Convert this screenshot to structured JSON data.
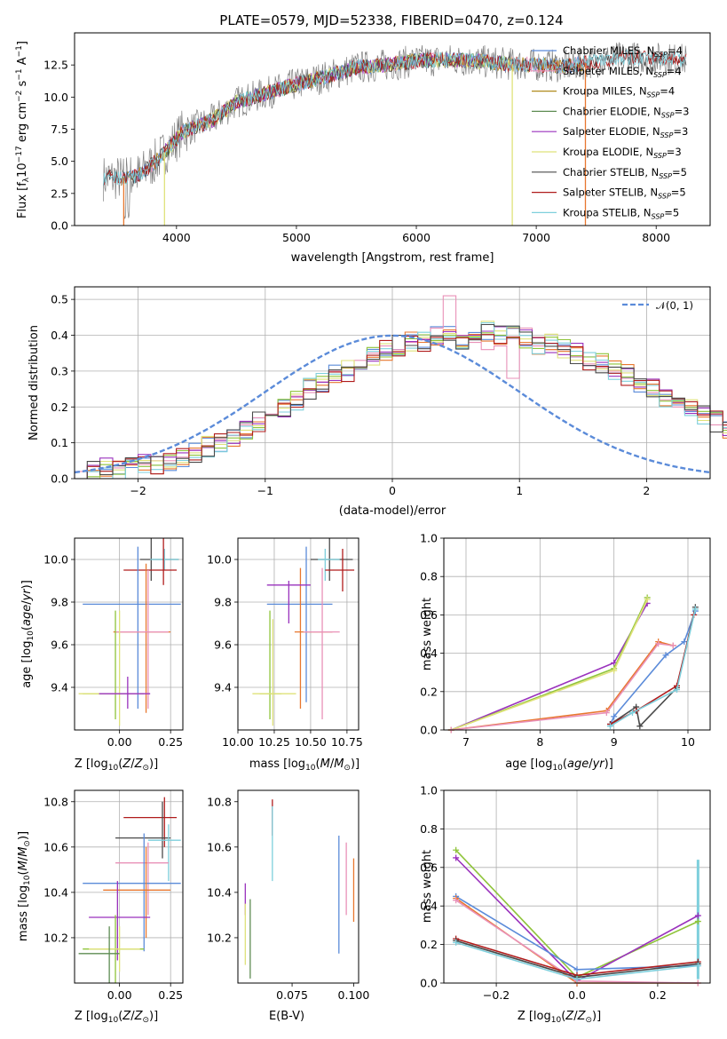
{
  "palette": {
    "Chabrier MILES": "#5b8bd9",
    "Salpeter MILES": "#e991b8",
    "Kroupa MILES": "#b08a1c",
    "Chabrier ELODIE": "#5e8c52",
    "Salpeter ELODIE": "#9a32bd",
    "Kroupa ELODIE": "#dfe27a",
    "Chabrier STELIB": "#4a4a4a",
    "Salpeter STELIB": "#b01c1c",
    "Kroupa STELIB": "#7ecfdc",
    "Orange": "#e8772e",
    "Lime": "#8fc43a",
    "Gauss": "#5b8bd9"
  },
  "chart_data": [
    {
      "id": "spectrum",
      "type": "line",
      "title": "PLATE=0579, MJD=52338, FIBERID=0470, z=0.124",
      "xlabel": "wavelength [Angstrom, rest frame]",
      "ylabel": "Flux [f_λ10^-17 erg cm^-2 s^-1 A^-1]",
      "xlim": [
        3150,
        8450
      ],
      "ylim": [
        0,
        15
      ],
      "xticks": [
        4000,
        5000,
        6000,
        7000,
        8000
      ],
      "yticks": [
        0.0,
        2.5,
        5.0,
        7.5,
        10.0,
        12.5
      ],
      "grid": false,
      "legend_position": "right",
      "legend": [
        "Chabrier MILES, N_SSP=4",
        "Salpeter MILES, N_SSP=4",
        "Kroupa MILES, N_SSP=4",
        "Chabrier ELODIE, N_SSP=3",
        "Salpeter ELODIE, N_SSP=3",
        "Kroupa ELODIE, N_SSP=3",
        "Chabrier STELIB, N_SSP=5",
        "Salpeter STELIB, N_SSP=5",
        "Kroupa STELIB, N_SSP=5"
      ],
      "continuum": [
        [
          3390,
          3.7
        ],
        [
          3600,
          3.7
        ],
        [
          3700,
          4.0
        ],
        [
          3850,
          5.2
        ],
        [
          3950,
          6.2
        ],
        [
          4050,
          7.3
        ],
        [
          4300,
          8.2
        ],
        [
          4500,
          9.6
        ],
        [
          4750,
          10.3
        ],
        [
          5000,
          11.0
        ],
        [
          5250,
          11.6
        ],
        [
          5500,
          12.3
        ],
        [
          5750,
          12.5
        ],
        [
          6000,
          12.8
        ],
        [
          6250,
          12.9
        ],
        [
          6500,
          12.8
        ],
        [
          6750,
          12.6
        ],
        [
          7000,
          12.5
        ],
        [
          7250,
          12.4
        ],
        [
          7500,
          12.8
        ],
        [
          7750,
          13.1
        ],
        [
          8000,
          13.0
        ],
        [
          8250,
          12.9
        ]
      ]
    },
    {
      "id": "residuals",
      "type": "histogram",
      "xlabel": "(data-model)/error",
      "ylabel": "Normed distribution",
      "xlim": [
        -2.5,
        2.5
      ],
      "ylim": [
        0,
        0.535
      ],
      "xticks": [
        -2,
        -1,
        0,
        1,
        2
      ],
      "yticks": [
        0.0,
        0.1,
        0.2,
        0.3,
        0.4,
        0.5
      ],
      "grid": true,
      "legend_position": "top-right",
      "legend": [
        "𝒩(0, 1)"
      ],
      "bin_width": 0.1,
      "bin_start": -2.5,
      "series": [
        {
          "name": "Chabrier MILES",
          "values": [
            0.02,
            0.02,
            0.03,
            0.03,
            0.03,
            0.04,
            0.04,
            0.05,
            0.06,
            0.07,
            0.09,
            0.1,
            0.12,
            0.14,
            0.16,
            0.18,
            0.2,
            0.22,
            0.25,
            0.27,
            0.29,
            0.3,
            0.32,
            0.34,
            0.36,
            0.37,
            0.38,
            0.38,
            0.4,
            0.41,
            0.39,
            0.4,
            0.41,
            0.4,
            0.4,
            0.39,
            0.37,
            0.38,
            0.36,
            0.35,
            0.33,
            0.32,
            0.3,
            0.29,
            0.26,
            0.25,
            0.23,
            0.21,
            0.19,
            0.18,
            0.16,
            0.14,
            0.13,
            0.11,
            0.1,
            0.08,
            0.07,
            0.06,
            0.05,
            0.04,
            0.04,
            0.03,
            0.02,
            0.02,
            0.02,
            0.01,
            0.01,
            0.01,
            0.01,
            0.01
          ]
        },
        {
          "name": "Salpeter MILES",
          "values": [
            0.02,
            0.02,
            0.03,
            0.03,
            0.04,
            0.04,
            0.05,
            0.05,
            0.06,
            0.08,
            0.09,
            0.11,
            0.12,
            0.15,
            0.17,
            0.18,
            0.21,
            0.23,
            0.24,
            0.27,
            0.3,
            0.31,
            0.33,
            0.35,
            0.37,
            0.36,
            0.38,
            0.39,
            0.42,
            0.51,
            0.4,
            0.38,
            0.36,
            0.37,
            0.28,
            0.42,
            0.37,
            0.36,
            0.36,
            0.34,
            0.32,
            0.31,
            0.3,
            0.28,
            0.27,
            0.24,
            0.22,
            0.2,
            0.19,
            0.18,
            0.15,
            0.14,
            0.12,
            0.11,
            0.09,
            0.08,
            0.07,
            0.06,
            0.05,
            0.04,
            0.03,
            0.03,
            0.02,
            0.02,
            0.02,
            0.01,
            0.01,
            0.01,
            0.01,
            0.01
          ]
        }
      ],
      "gaussian": {
        "mean": 0,
        "sigma": 1
      }
    },
    {
      "id": "Z-age",
      "type": "errorbar",
      "xlabel": "Z [log10(Z/Z⊙)]",
      "ylabel": "age [log10(age/yr)]",
      "xlim": [
        -0.22,
        0.31
      ],
      "ylim": [
        9.2,
        10.1
      ],
      "xticks": [
        0.0,
        0.25
      ],
      "yticks": [
        9.4,
        9.6,
        9.8,
        10.0
      ],
      "grid": true
    },
    {
      "id": "mass-age",
      "type": "errorbar",
      "xlabel": "mass [log10(M/M⊙)]",
      "xlim": [
        10.0,
        10.83
      ],
      "ylim": [
        9.2,
        10.1
      ],
      "xticks": [
        10.0,
        10.25,
        10.5,
        10.75
      ],
      "yticks": [
        9.4,
        9.6,
        9.8,
        10.0
      ],
      "grid": true
    },
    {
      "id": "age-weight",
      "type": "line",
      "xlabel": "age [log10(age/yr)]",
      "ylabel": "mass weight",
      "xlim": [
        6.7,
        10.3
      ],
      "ylim": [
        0,
        1.0
      ],
      "xticks": [
        7,
        8,
        9,
        10
      ],
      "yticks": [
        0.0,
        0.2,
        0.4,
        0.6,
        0.8,
        1.0
      ],
      "grid": true
    },
    {
      "id": "Z-mass",
      "type": "errorbar",
      "xlabel": "Z [log10(Z/Z⊙)]",
      "ylabel": "mass [log10(M/M⊙)]",
      "xlim": [
        -0.22,
        0.31
      ],
      "ylim": [
        10.0,
        10.85
      ],
      "xticks": [
        0.0,
        0.25
      ],
      "yticks": [
        10.2,
        10.4,
        10.6,
        10.8
      ],
      "grid": true
    },
    {
      "id": "ebv-mass",
      "type": "errorbar",
      "xlabel": "E(B-V)",
      "xlim": [
        0.053,
        0.102
      ],
      "ylim": [
        10.0,
        10.85
      ],
      "xticks": [
        0.075,
        0.1
      ],
      "yticks": [
        10.2,
        10.4,
        10.6,
        10.8
      ],
      "grid": false
    },
    {
      "id": "Z-weight",
      "type": "line",
      "xlabel": "Z [log10(Z/Z⊙)]",
      "ylabel": "mass weight",
      "xlim": [
        -0.33,
        0.33
      ],
      "ylim": [
        0,
        1.0
      ],
      "xticks": [
        -0.2,
        0.0,
        0.2
      ],
      "yticks": [
        0.0,
        0.2,
        0.4,
        0.6,
        0.8,
        1.0
      ],
      "grid": true
    }
  ],
  "errorbars": {
    "Z-age": [
      {
        "c": "#4a4a4a",
        "x": 0.155,
        "xe": [
          0.1,
          0.29
        ],
        "y": 10.0,
        "ye": [
          9.9,
          10.1
        ]
      },
      {
        "c": "#7ecfdc",
        "x": 0.22,
        "xe": [
          0.15,
          0.29
        ],
        "y": 10.0,
        "ye": [
          9.95,
          10.05
        ]
      },
      {
        "c": "#b01c1c",
        "x": 0.215,
        "xe": [
          0.02,
          0.28
        ],
        "y": 9.95,
        "ye": [
          9.88,
          10.1
        ]
      },
      {
        "c": "#5b8bd9",
        "x": 0.09,
        "xe": [
          -0.18,
          0.3
        ],
        "y": 9.79,
        "ye": [
          9.3,
          10.06
        ]
      },
      {
        "c": "#e8772e",
        "x": 0.13,
        "xe": [
          -0.03,
          0.25
        ],
        "y": 9.66,
        "ye": [
          9.28,
          9.98
        ]
      },
      {
        "c": "#e991b8",
        "x": 0.14,
        "xe": [
          -0.02,
          0.24
        ],
        "y": 9.66,
        "ye": [
          9.3,
          9.95
        ]
      },
      {
        "c": "#8fc43a",
        "x": -0.02,
        "xe": [
          -0.18,
          0.12
        ],
        "y": 9.37,
        "ye": [
          9.25,
          9.76
        ]
      },
      {
        "c": "#dfe27a",
        "x": 0.0,
        "xe": [
          -0.2,
          0.1
        ],
        "y": 9.37,
        "ye": [
          9.22,
          9.76
        ]
      },
      {
        "c": "#9a32bd",
        "x": 0.04,
        "xe": [
          -0.1,
          0.15
        ],
        "y": 9.37,
        "ye": [
          9.3,
          9.45
        ]
      }
    ],
    "mass-age": [
      {
        "c": "#4a4a4a",
        "x": 10.63,
        "xe": [
          10.5,
          10.79
        ],
        "y": 10.0,
        "ye": [
          9.9,
          10.1
        ]
      },
      {
        "c": "#7ecfdc",
        "x": 10.6,
        "xe": [
          10.55,
          10.7
        ],
        "y": 10.0,
        "ye": [
          9.9,
          10.05
        ]
      },
      {
        "c": "#b01c1c",
        "x": 10.72,
        "xe": [
          10.6,
          10.8
        ],
        "y": 9.95,
        "ye": [
          9.85,
          10.05
        ]
      },
      {
        "c": "#5b8bd9",
        "x": 10.47,
        "xe": [
          10.2,
          10.65
        ],
        "y": 9.79,
        "ye": [
          9.33,
          10.06
        ]
      },
      {
        "c": "#e8772e",
        "x": 10.43,
        "xe": [
          10.39,
          10.65
        ],
        "y": 9.66,
        "ye": [
          9.3,
          9.96
        ]
      },
      {
        "c": "#e991b8",
        "x": 10.58,
        "xe": [
          10.45,
          10.7
        ],
        "y": 9.66,
        "ye": [
          9.25,
          9.96
        ]
      },
      {
        "c": "#9a32bd",
        "x": 10.35,
        "xe": [
          10.2,
          10.5
        ],
        "y": 9.88,
        "ye": [
          9.7,
          9.9
        ]
      },
      {
        "c": "#8fc43a",
        "x": 10.22,
        "xe": [
          10.15,
          10.3
        ],
        "y": 9.37,
        "ye": [
          9.25,
          9.76
        ]
      },
      {
        "c": "#dfe27a",
        "x": 10.24,
        "xe": [
          10.1,
          10.4
        ],
        "y": 9.37,
        "ye": [
          9.22,
          9.72
        ]
      }
    ],
    "Z-mass": [
      {
        "c": "#b01c1c",
        "x": 0.22,
        "xe": [
          0.02,
          0.28
        ],
        "y": 10.73,
        "ye": [
          10.6,
          10.82
        ]
      },
      {
        "c": "#4a4a4a",
        "x": 0.21,
        "xe": [
          -0.02,
          0.25
        ],
        "y": 10.64,
        "ye": [
          10.55,
          10.8
        ]
      },
      {
        "c": "#7ecfdc",
        "x": 0.24,
        "xe": [
          0.14,
          0.3
        ],
        "y": 10.63,
        "ye": [
          10.45,
          10.7
        ]
      },
      {
        "c": "#e991b8",
        "x": 0.14,
        "xe": [
          -0.02,
          0.24
        ],
        "y": 10.53,
        "ye": [
          10.3,
          10.62
        ]
      },
      {
        "c": "#5b8bd9",
        "x": 0.12,
        "xe": [
          -0.18,
          0.3
        ],
        "y": 10.44,
        "ye": [
          10.14,
          10.66
        ]
      },
      {
        "c": "#e8772e",
        "x": 0.13,
        "xe": [
          -0.08,
          0.25
        ],
        "y": 10.41,
        "ye": [
          10.2,
          10.6
        ]
      },
      {
        "c": "#9a32bd",
        "x": -0.01,
        "xe": [
          -0.15,
          0.15
        ],
        "y": 10.29,
        "ye": [
          10.1,
          10.45
        ]
      },
      {
        "c": "#8fc43a",
        "x": -0.02,
        "xe": [
          -0.18,
          0.12
        ],
        "y": 10.15,
        "ye": [
          10.0,
          10.3
        ]
      },
      {
        "c": "#dfe27a",
        "x": 0.0,
        "xe": [
          -0.15,
          0.1
        ],
        "y": 10.15,
        "ye": [
          10.05,
          10.25
        ]
      },
      {
        "c": "#5e8c52",
        "x": -0.05,
        "xe": [
          -0.2,
          0.0
        ],
        "y": 10.13,
        "ye": [
          10.0,
          10.25
        ]
      }
    ],
    "ebv-mass": [
      {
        "c": "#b01c1c",
        "x": 0.067,
        "y": 10.73,
        "ye": [
          10.65,
          10.81
        ]
      },
      {
        "c": "#7ecfdc",
        "x": 0.067,
        "y": 10.6,
        "ye": [
          10.45,
          10.78
        ]
      },
      {
        "c": "#5b8bd9",
        "x": 0.094,
        "y": 10.4,
        "ye": [
          10.13,
          10.65
        ]
      },
      {
        "c": "#e991b8",
        "x": 0.097,
        "y": 10.47,
        "ye": [
          10.3,
          10.62
        ]
      },
      {
        "c": "#e8772e",
        "x": 0.1,
        "y": 10.41,
        "ye": [
          10.27,
          10.55
        ]
      },
      {
        "c": "#9a32bd",
        "x": 0.056,
        "y": 10.35,
        "ye": [
          10.3,
          10.44
        ]
      },
      {
        "c": "#dfe27a",
        "x": 0.056,
        "y": 10.2,
        "ye": [
          10.08,
          10.35
        ]
      },
      {
        "c": "#5e8c52",
        "x": 0.058,
        "y": 10.2,
        "ye": [
          10.02,
          10.37
        ]
      }
    ]
  },
  "weight_lines": {
    "age-weight": [
      {
        "c": "#9a32bd",
        "pts": [
          [
            6.8,
            0.0
          ],
          [
            9.0,
            0.35
          ],
          [
            9.45,
            0.66
          ]
        ]
      },
      {
        "c": "#8fc43a",
        "pts": [
          [
            6.8,
            0.0
          ],
          [
            9.0,
            0.32
          ],
          [
            9.45,
            0.69
          ]
        ]
      },
      {
        "c": "#dfe27a",
        "pts": [
          [
            6.8,
            0.0
          ],
          [
            9.0,
            0.31
          ],
          [
            9.45,
            0.68
          ]
        ]
      },
      {
        "c": "#e8772e",
        "pts": [
          [
            6.8,
            0.0
          ],
          [
            8.9,
            0.1
          ],
          [
            9.6,
            0.46
          ],
          [
            9.8,
            0.44
          ]
        ]
      },
      {
        "c": "#e991b8",
        "pts": [
          [
            6.8,
            0.0
          ],
          [
            8.9,
            0.09
          ],
          [
            9.6,
            0.45
          ],
          [
            9.8,
            0.44
          ]
        ]
      },
      {
        "c": "#5b8bd9",
        "pts": [
          [
            8.95,
            0.03
          ],
          [
            9.0,
            0.07
          ],
          [
            9.7,
            0.39
          ],
          [
            9.95,
            0.46
          ],
          [
            10.1,
            0.62
          ]
        ]
      },
      {
        "c": "#4a4a4a",
        "pts": [
          [
            8.95,
            0.03
          ],
          [
            9.3,
            0.12
          ],
          [
            9.35,
            0.02
          ],
          [
            9.85,
            0.22
          ],
          [
            10.1,
            0.64
          ]
        ]
      },
      {
        "c": "#b01c1c",
        "pts": [
          [
            8.95,
            0.03
          ],
          [
            9.3,
            0.1
          ],
          [
            9.85,
            0.23
          ],
          [
            10.08,
            0.6
          ]
        ]
      },
      {
        "c": "#7ecfdc",
        "pts": [
          [
            8.95,
            0.02
          ],
          [
            9.25,
            0.09
          ],
          [
            9.85,
            0.21
          ],
          [
            10.1,
            0.63
          ]
        ]
      }
    ],
    "Z-weight": [
      {
        "c": "#8fc43a",
        "pts": [
          [
            -0.3,
            0.69
          ],
          [
            0.0,
            0.03
          ],
          [
            0.3,
            0.32
          ]
        ]
      },
      {
        "c": "#9a32bd",
        "pts": [
          [
            -0.3,
            0.65
          ],
          [
            0.0,
            0.01
          ],
          [
            0.3,
            0.35
          ]
        ]
      },
      {
        "c": "#5b8bd9",
        "pts": [
          [
            -0.3,
            0.45
          ],
          [
            0.0,
            0.07
          ],
          [
            0.3,
            0.09
          ]
        ]
      },
      {
        "c": "#e8772e",
        "pts": [
          [
            -0.3,
            0.44
          ],
          [
            0.0,
            0.0
          ],
          [
            0.3,
            0.0
          ]
        ]
      },
      {
        "c": "#e991b8",
        "pts": [
          [
            -0.3,
            0.43
          ],
          [
            0.0,
            0.01
          ],
          [
            0.3,
            0.0
          ]
        ]
      },
      {
        "c": "#b01c1c",
        "pts": [
          [
            -0.3,
            0.23
          ],
          [
            0.0,
            0.04
          ],
          [
            0.3,
            0.11
          ]
        ]
      },
      {
        "c": "#4a4a4a",
        "pts": [
          [
            -0.3,
            0.22
          ],
          [
            0.0,
            0.03
          ],
          [
            0.3,
            0.1
          ]
        ]
      },
      {
        "c": "#7ecfdc",
        "pts": [
          [
            -0.3,
            0.21
          ],
          [
            0.0,
            0.02
          ],
          [
            0.3,
            0.09
          ]
        ]
      }
    ],
    "Z-weight-vbar": {
      "x": 0.3,
      "range": [
        0.02,
        0.64
      ],
      "c": "#7ecfdc"
    }
  }
}
